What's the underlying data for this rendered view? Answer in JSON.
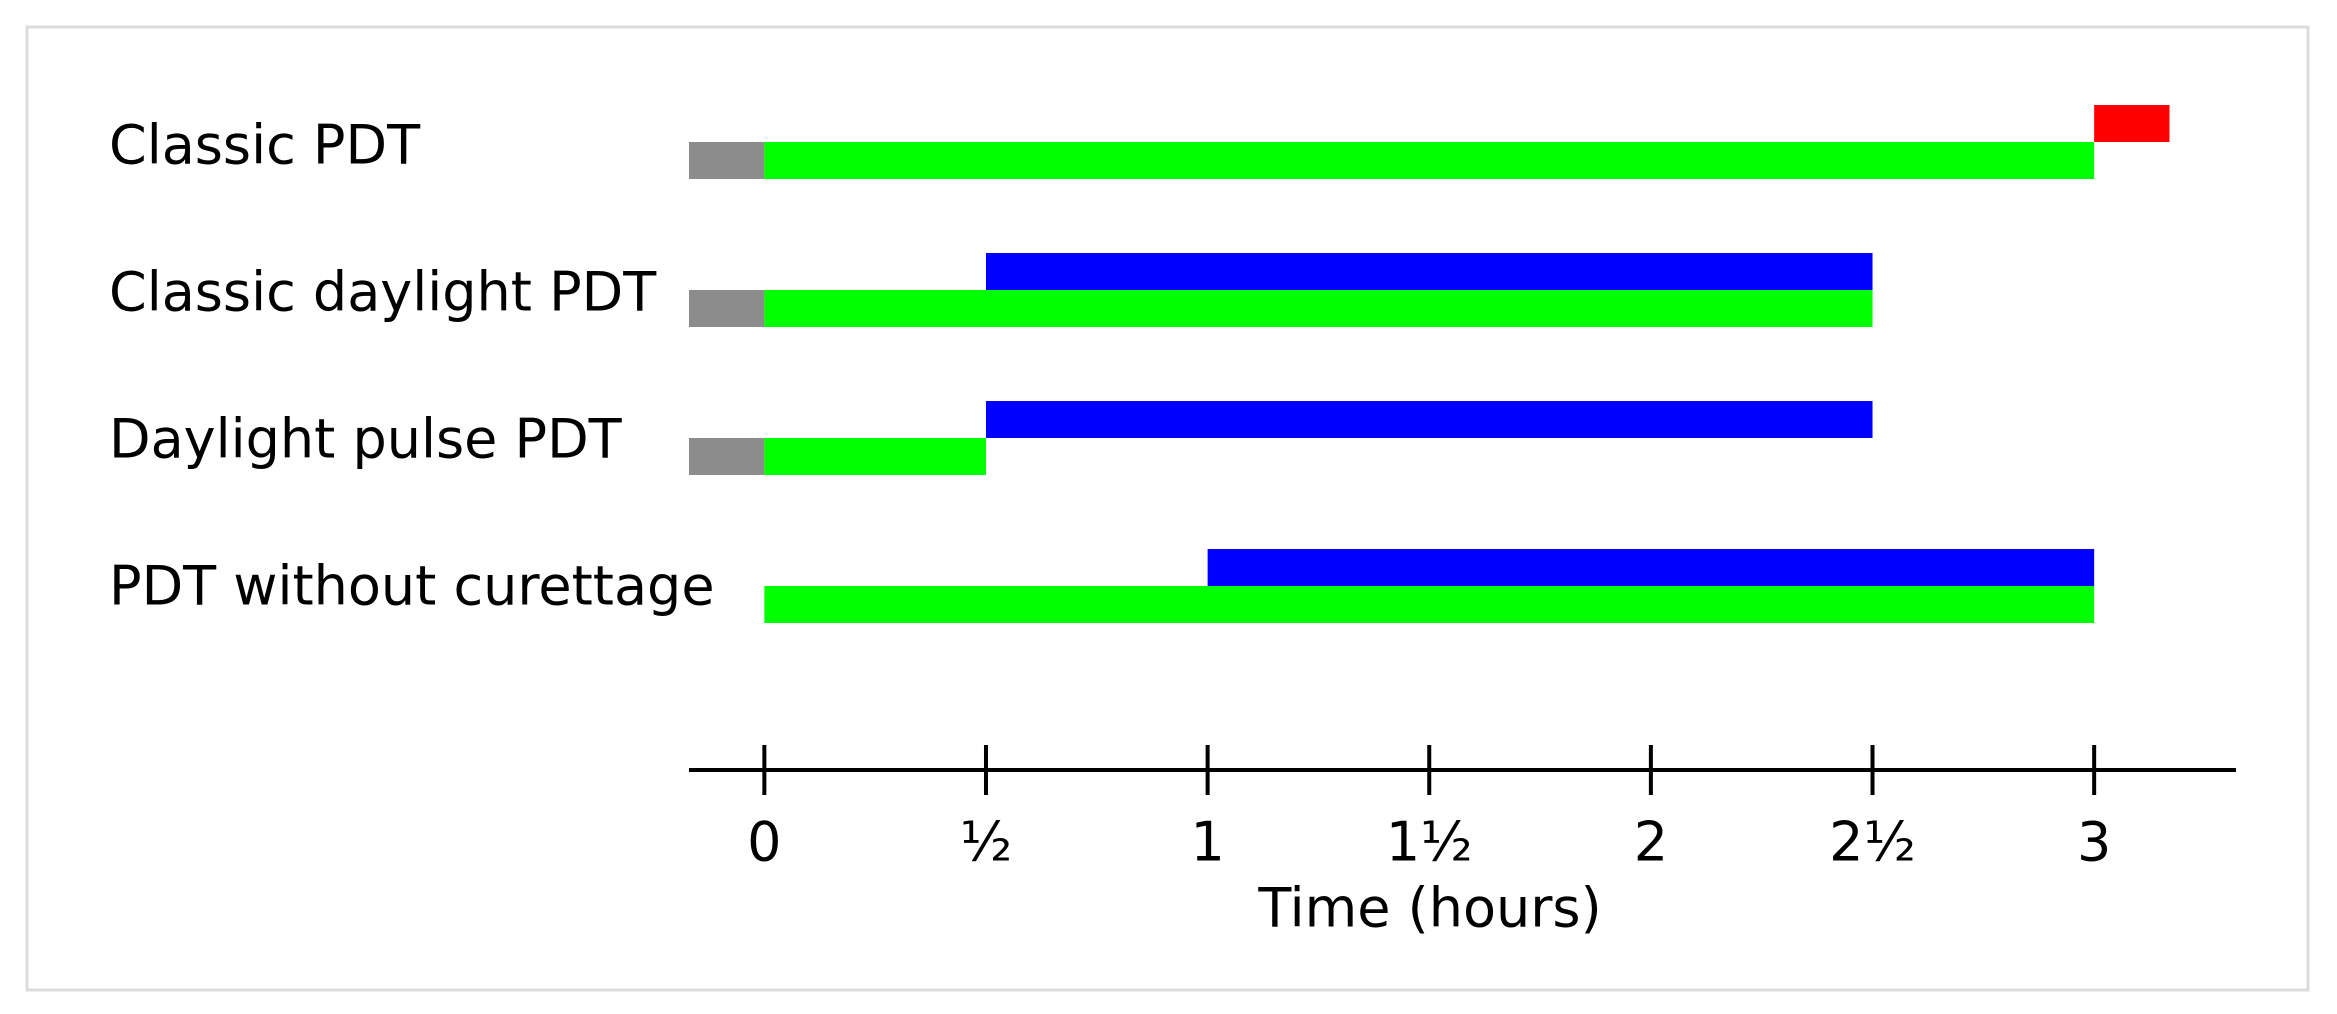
{
  "chart_data": {
    "type": "timeline",
    "categories": [
      "Classic PDT",
      "Classic daylight PDT",
      "Daylight pulse PDT",
      "PDT without curettage"
    ],
    "series": [
      {
        "color": "#8c8c8c",
        "lane": 0,
        "values": [
          [
            -0.17,
            0
          ],
          [
            -0.17,
            0
          ],
          [
            -0.17,
            0
          ],
          null
        ]
      },
      {
        "color": "#00ff00",
        "lane": 0,
        "values": [
          [
            0,
            3
          ],
          [
            0,
            2.5
          ],
          [
            0,
            0.5
          ],
          [
            0,
            3
          ]
        ]
      },
      {
        "color": "#0000ff",
        "lane": 1,
        "values": [
          null,
          [
            0.5,
            2.5
          ],
          [
            0.5,
            2.5
          ],
          [
            1,
            3
          ]
        ]
      },
      {
        "color": "#ff0000",
        "lane": 1,
        "values": [
          [
            3,
            3.17
          ],
          null,
          null,
          null
        ]
      }
    ],
    "xlim": [
      -0.17,
      3.32
    ],
    "xticks": [
      0,
      {
        "value": 0.5,
        "label": "½"
      },
      1,
      {
        "value": 1.5,
        "label": "1½"
      },
      2,
      {
        "value": 2.5,
        "label": "2½"
      },
      3
    ],
    "xlabel": "Time (hours)"
  }
}
